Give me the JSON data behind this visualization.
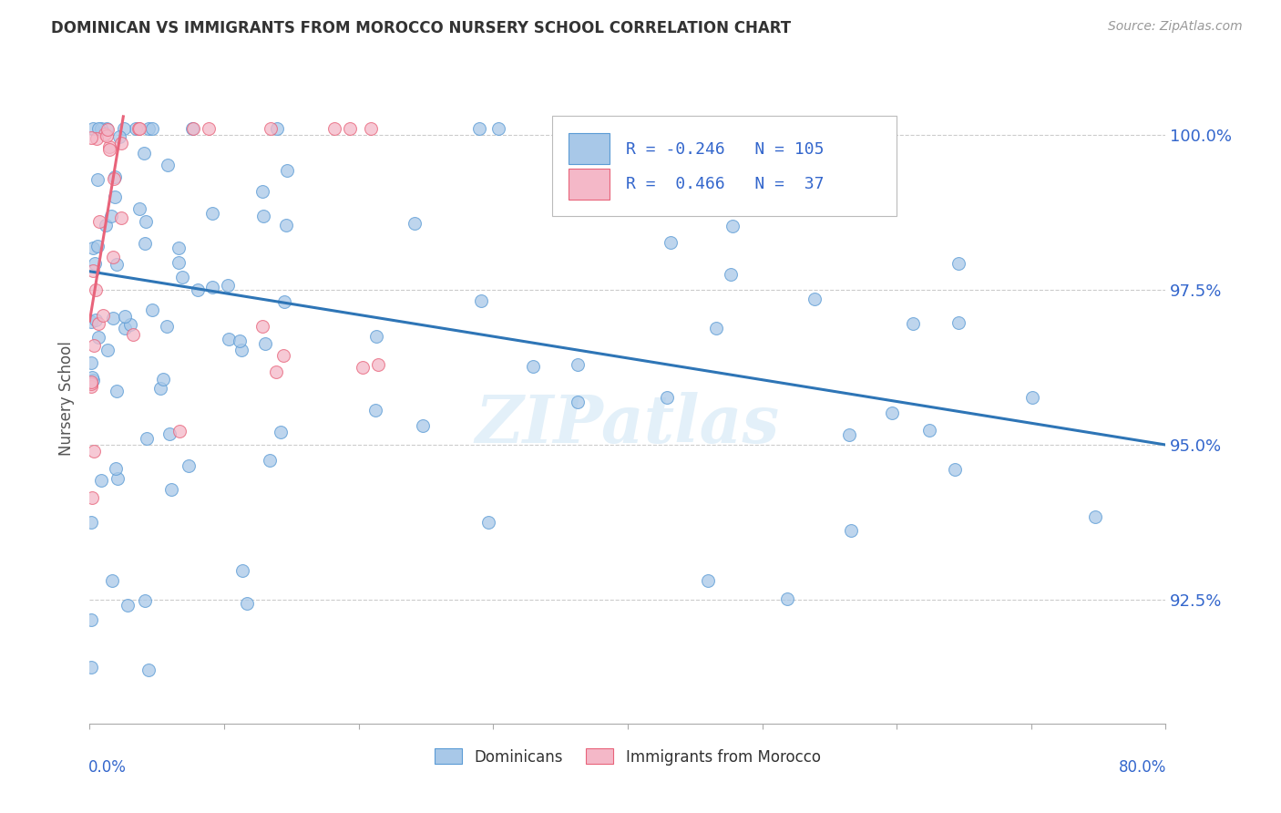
{
  "title": "DOMINICAN VS IMMIGRANTS FROM MOROCCO NURSERY SCHOOL CORRELATION CHART",
  "source": "Source: ZipAtlas.com",
  "ylabel": "Nursery School",
  "ytick_labels": [
    "100.0%",
    "97.5%",
    "95.0%",
    "92.5%"
  ],
  "ytick_values": [
    1.0,
    0.975,
    0.95,
    0.925
  ],
  "xlim": [
    0.0,
    0.8
  ],
  "ylim": [
    0.905,
    1.01
  ],
  "legend_blue_r": "-0.246",
  "legend_blue_n": "105",
  "legend_pink_r": "0.466",
  "legend_pink_n": "37",
  "blue_color": "#a8c8e8",
  "blue_edge_color": "#5b9bd5",
  "pink_color": "#f4b8c8",
  "pink_edge_color": "#e8637a",
  "trendline_blue_color": "#2e75b6",
  "trendline_pink_color": "#e8637a",
  "watermark": "ZIPatlas",
  "grid_color": "#cccccc",
  "title_color": "#333333",
  "source_color": "#999999",
  "axis_label_color": "#3366cc",
  "ylabel_color": "#555555"
}
